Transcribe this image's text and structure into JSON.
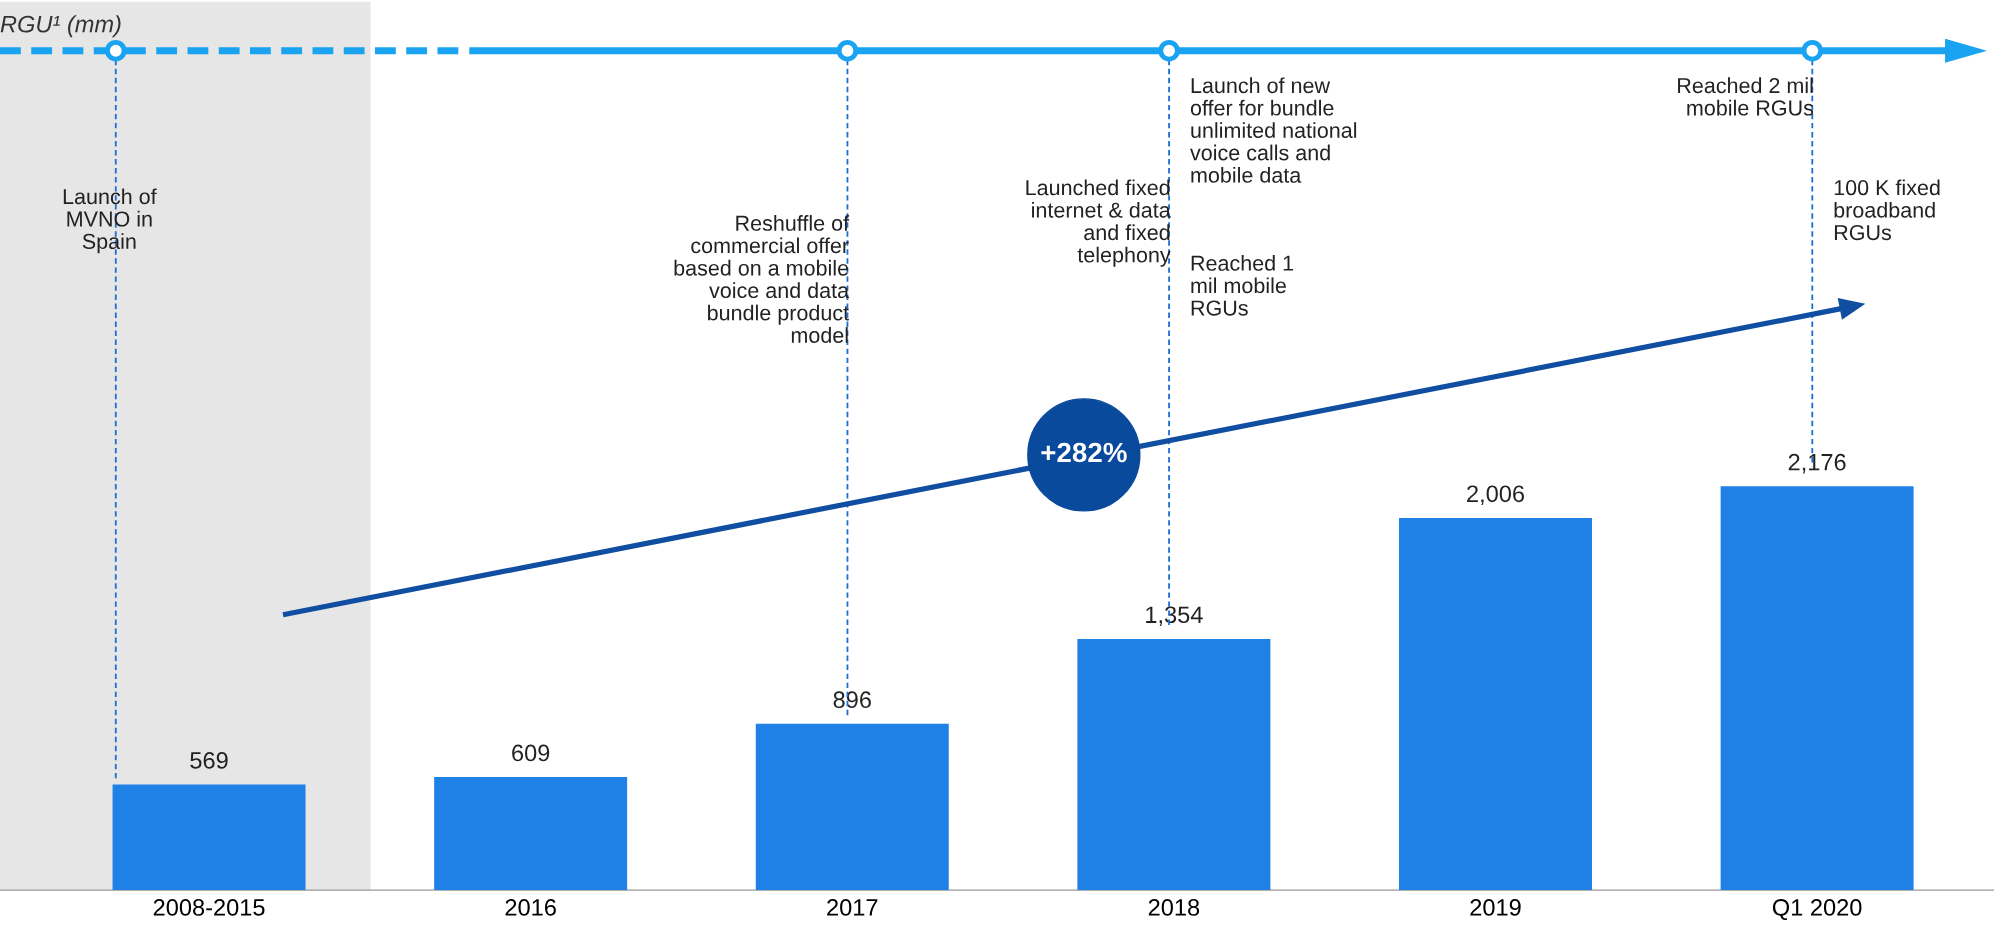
{
  "chart_data": {
    "type": "bar",
    "title": "RGU¹ (mm)",
    "categories": [
      "2008-2015",
      "2016",
      "2017",
      "2018",
      "2019",
      "Q1 2020"
    ],
    "values": [
      569,
      609,
      896,
      1354,
      2006,
      2176
    ],
    "color": "#1f80e6",
    "value_labels": [
      "569",
      "609",
      "896",
      "1,354",
      "2,006",
      "2,176"
    ],
    "legend": false,
    "annotations": [
      "Launch of\nMVNO in\nSpain",
      "Reshuffle of\ncommercial offer\nbased on a mobile\nvoice and data\nbundle product\nmodel",
      "Launched fixed\ninternet & data\nand fixed\ntelephony",
      "Launch of new\noffer for bundle\nunlimited national\nvoice calls and\nmobile data",
      "Reached 1\nmil mobile\nRGUs",
      "Reached 2 mil\nmobile RGUs",
      "100 K fixed\nbroadband\nRGUs",
      "+282%"
    ]
  }
}
